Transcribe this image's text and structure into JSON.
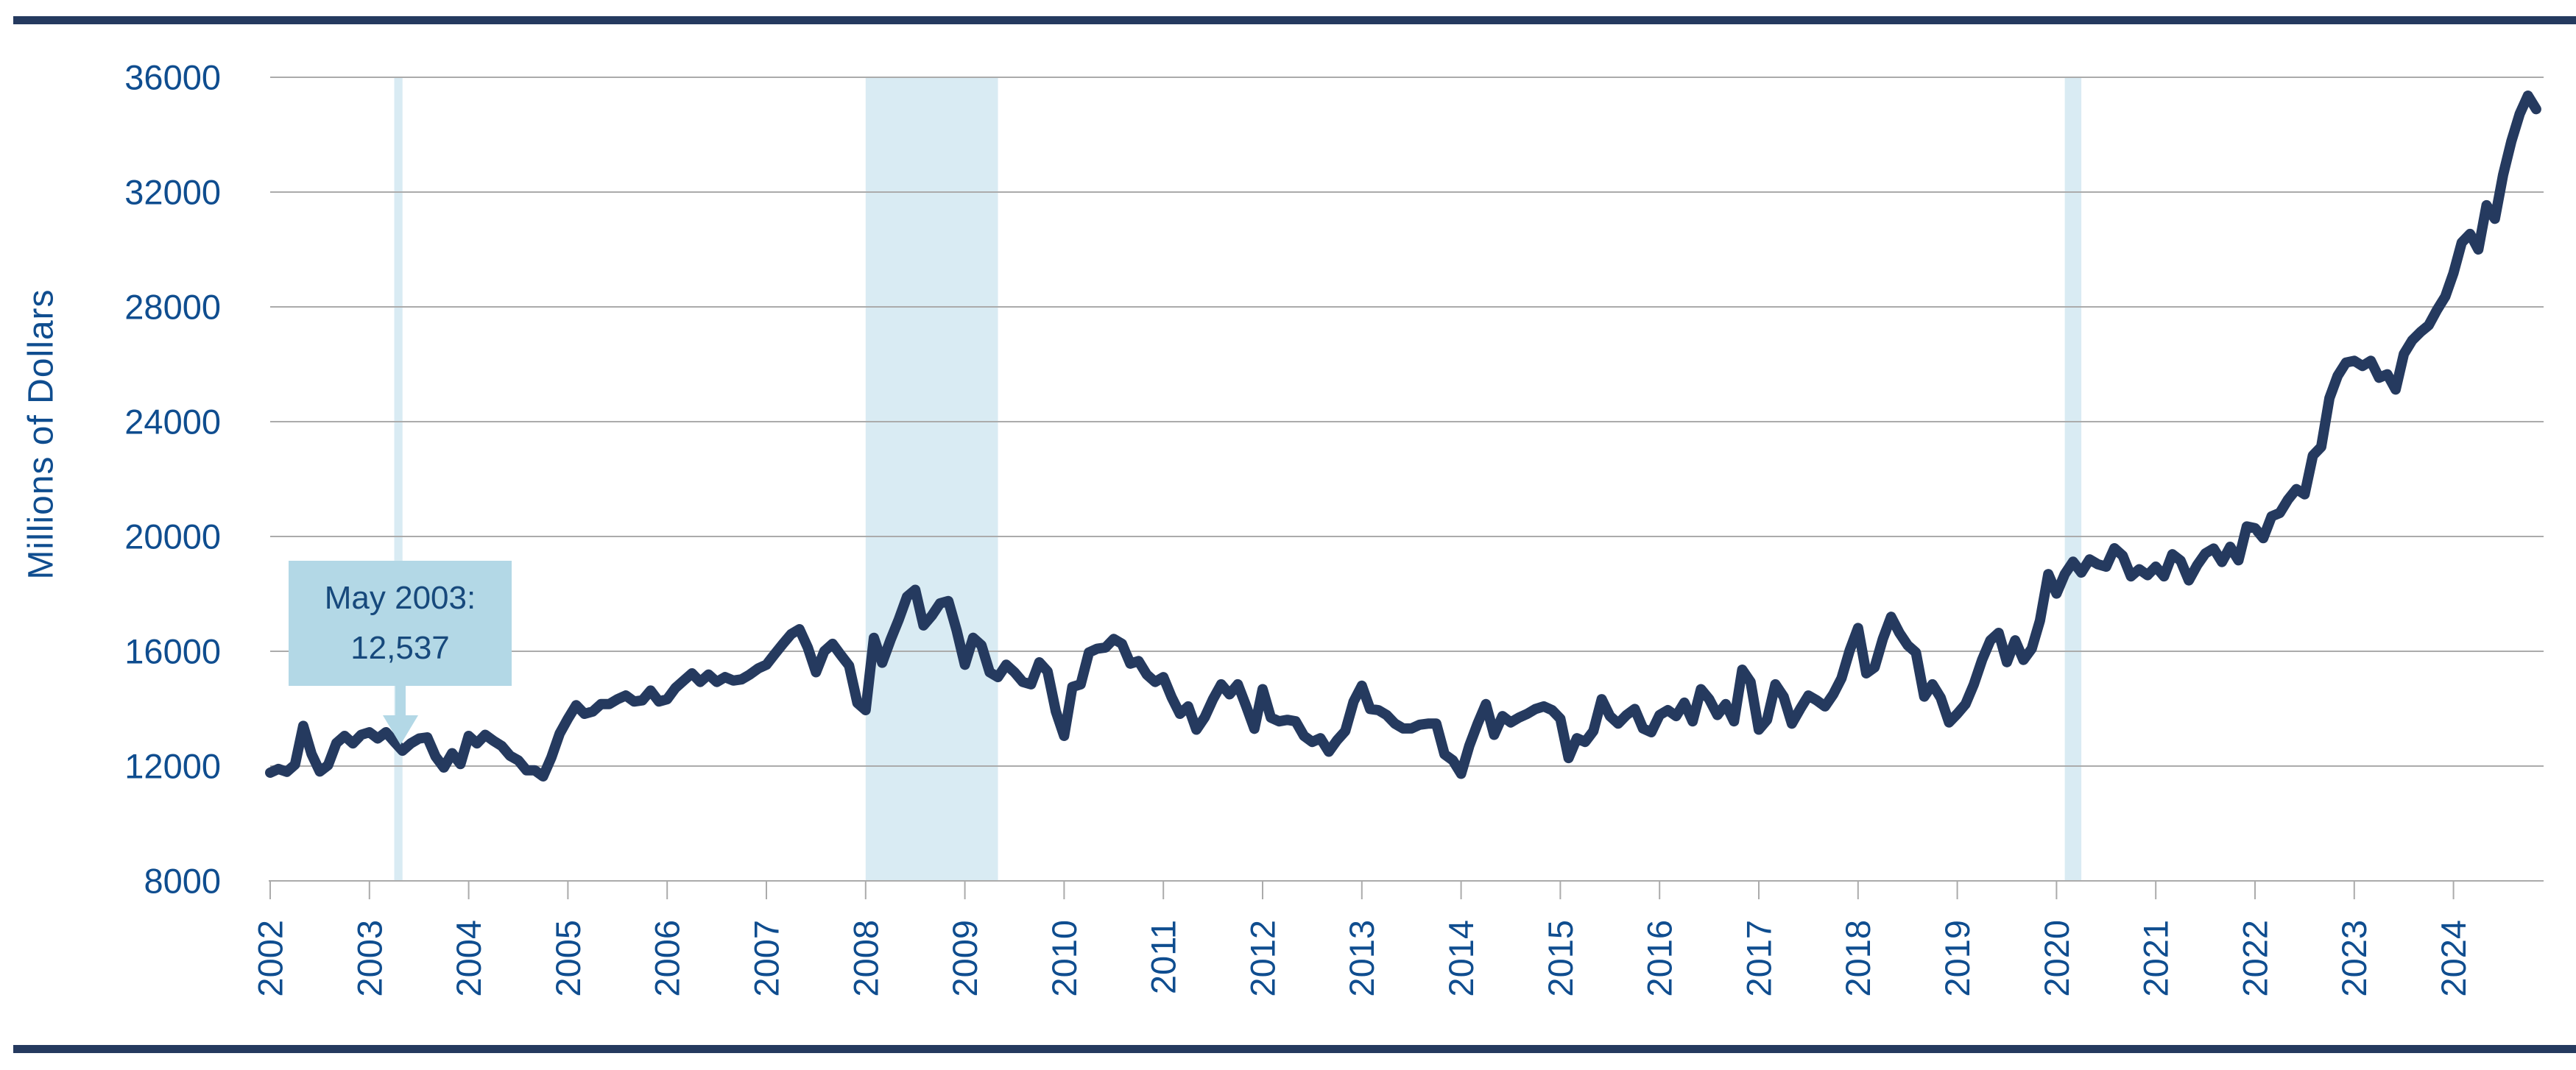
{
  "chart_data": {
    "type": "line",
    "title": "",
    "ylabel": "Millions of Dollars",
    "xlabel": "",
    "ylim": [
      8000,
      36000
    ],
    "y_ticks": [
      8000,
      12000,
      16000,
      20000,
      24000,
      28000,
      32000,
      36000
    ],
    "x_tick_years": [
      2002,
      2003,
      2004,
      2005,
      2006,
      2007,
      2008,
      2009,
      2010,
      2011,
      2012,
      2013,
      2014,
      2015,
      2016,
      2017,
      2018,
      2019,
      2020,
      2021,
      2022,
      2023,
      2024
    ],
    "grid": "horizontal",
    "legend": "none",
    "series_start_month": "2002-01",
    "series_name": "Millions of Dollars (monthly)",
    "values": [
      11770,
      11900,
      11800,
      12050,
      13400,
      12420,
      11810,
      12030,
      12800,
      13050,
      12790,
      13090,
      13180,
      12960,
      13180,
      12850,
      12537,
      12790,
      12960,
      13000,
      12330,
      11950,
      12450,
      12070,
      13050,
      12790,
      13090,
      12880,
      12700,
      12360,
      12200,
      11850,
      11850,
      11640,
      12300,
      13130,
      13650,
      14120,
      13820,
      13900,
      14160,
      14160,
      14330,
      14460,
      14250,
      14290,
      14630,
      14250,
      14330,
      14720,
      14980,
      15230,
      14930,
      15190,
      14930,
      15100,
      14980,
      15020,
      15190,
      15400,
      15530,
      15900,
      16260,
      16600,
      16770,
      16130,
      15270,
      16000,
      16260,
      15870,
      15500,
      14200,
      13950,
      16470,
      15600,
      16390,
      17100,
      17900,
      18140,
      16900,
      17240,
      17670,
      17750,
      16730,
      15530,
      16470,
      16210,
      15270,
      15100,
      15530,
      15270,
      14930,
      14850,
      15615,
      15300,
      13900,
      13050,
      14760,
      14850,
      15960,
      16090,
      16130,
      16430,
      16260,
      15570,
      15660,
      15190,
      14930,
      15100,
      14400,
      13820,
      14080,
      13270,
      13700,
      14330,
      14850,
      14500,
      14850,
      14100,
      13300,
      14680,
      13690,
      13560,
      13610,
      13560,
      13050,
      12840,
      12970,
      12500,
      12900,
      13220,
      14250,
      14800,
      13990,
      13950,
      13780,
      13480,
      13310,
      13310,
      13440,
      13480,
      13480,
      12410,
      12200,
      11730,
      12710,
      13480,
      14160,
      13090,
      13740,
      13520,
      13690,
      13820,
      13990,
      14080,
      13950,
      13650,
      12280,
      12970,
      12840,
      13220,
      14330,
      13740,
      13480,
      13780,
      13990,
      13310,
      13180,
      13780,
      13950,
      13740,
      14210,
      13560,
      14680,
      14330,
      13780,
      14160,
      13560,
      15360,
      14930,
      13270,
      13610,
      14850,
      14420,
      13480,
      13990,
      14460,
      14290,
      14080,
      14500,
      15060,
      16040,
      16810,
      15230,
      15440,
      16430,
      17200,
      16640,
      16210,
      15960,
      14420,
      14850,
      14380,
      13520,
      13820,
      14160,
      14850,
      15700,
      16380,
      16640,
      15620,
      16380,
      15700,
      16090,
      17070,
      18690,
      18010,
      18690,
      19120,
      18740,
      19200,
      19030,
      18950,
      19590,
      19330,
      18610,
      18860,
      18650,
      18950,
      18610,
      19380,
      19160,
      18470,
      19000,
      19410,
      19580,
      19110,
      19640,
      19170,
      20350,
      20290,
      19940,
      20700,
      20820,
      21290,
      21650,
      21470,
      22820,
      23120,
      24820,
      25600,
      26060,
      26120,
      25940,
      26120,
      25530,
      25650,
      25120,
      26360,
      26830,
      27120,
      27360,
      27890,
      28360,
      29180,
      30240,
      30540,
      30000,
      31540,
      31070,
      32600,
      33770,
      34720,
      35360,
      34890
    ],
    "recession_bands": [
      {
        "start": "2003-04",
        "end": "2003-05"
      },
      {
        "start": "2008-01",
        "end": "2009-05"
      },
      {
        "start": "2020-02",
        "end": "2020-04"
      }
    ],
    "annotation": {
      "line1": "May 2003:",
      "line2": "12,537",
      "month": "2003-05",
      "value": 12537
    },
    "colors": {
      "line": "#253A5F",
      "grid": "#ABABAB",
      "band": "#D9EBF3",
      "annotation_fill": "#B3D8E6",
      "text": "#0F4D8F",
      "border_rule": "#253A5F"
    }
  }
}
